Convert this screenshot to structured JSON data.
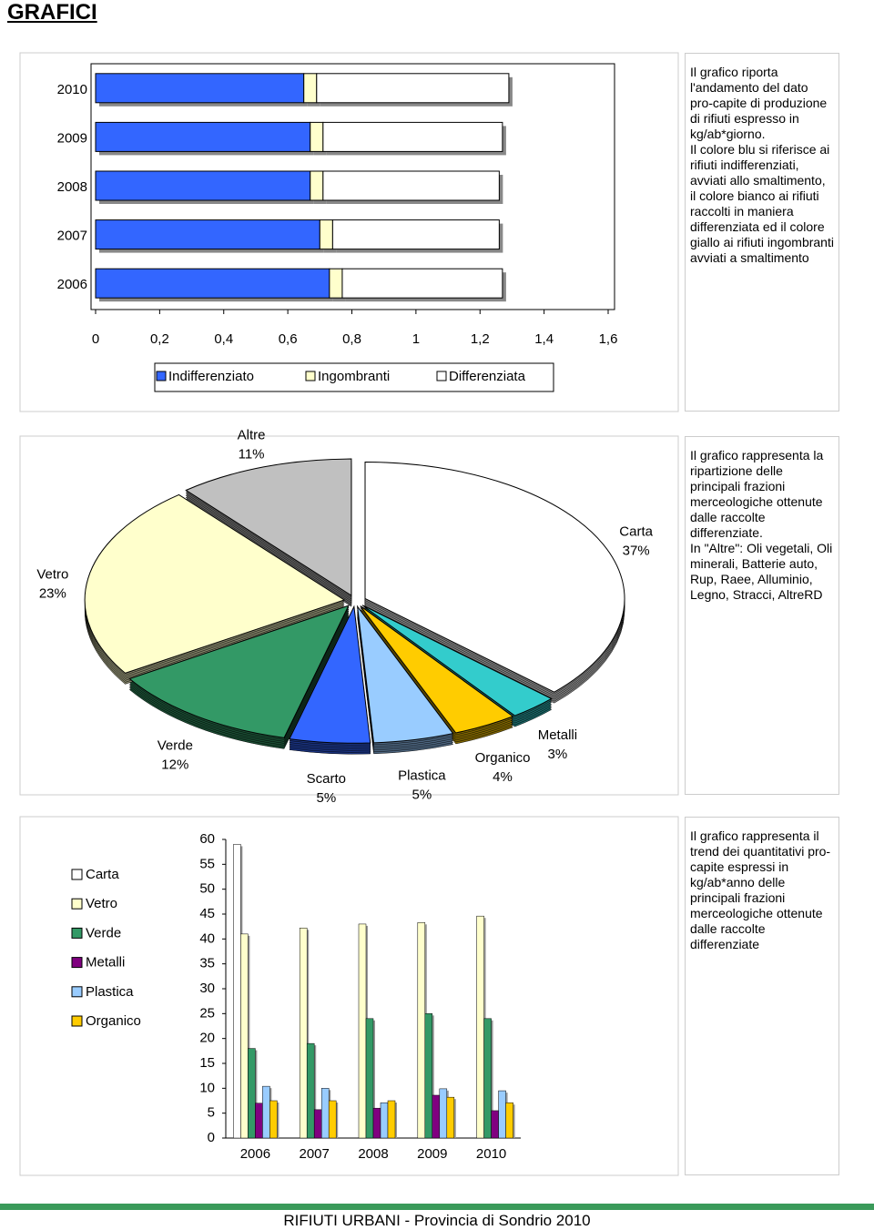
{
  "title": "GRAFICI",
  "chart_data": [
    {
      "type": "hbar",
      "stacked": true,
      "categories": [
        "2010",
        "2009",
        "2008",
        "2007",
        "2006"
      ],
      "series": [
        {
          "name": "Indifferenziato",
          "color": "#3366ff",
          "values": [
            0.65,
            0.67,
            0.67,
            0.7,
            0.73
          ]
        },
        {
          "name": "Ingombranti",
          "color": "#ffffcc",
          "values": [
            0.04,
            0.04,
            0.04,
            0.04,
            0.04
          ]
        },
        {
          "name": "Differenziata",
          "color": "#ffffff",
          "values": [
            0.6,
            0.56,
            0.55,
            0.52,
            0.5
          ]
        }
      ],
      "xlim": [
        0,
        1.6
      ],
      "xticks": [
        0,
        {
          "value": 0.2,
          "label": "0,2"
        },
        {
          "value": 0.4,
          "label": "0,4"
        },
        {
          "value": 0.6,
          "label": "0,6"
        },
        {
          "value": 0.8,
          "label": "0,8"
        },
        1,
        {
          "value": 1.2,
          "label": "1,2"
        },
        {
          "value": 1.4,
          "label": "1,4"
        },
        {
          "value": 1.6,
          "label": "1,6"
        }
      ],
      "legend": "bottom"
    },
    {
      "type": "pie",
      "categories": [
        "Carta",
        "Metalli",
        "Organico",
        "Plastica",
        "Scarto",
        "Verde",
        "Vetro",
        "Altre"
      ],
      "values": [
        37,
        3,
        4,
        5,
        5,
        12,
        23,
        11
      ],
      "value_labels": [
        "37%",
        "3%",
        "4%",
        "5%",
        "5%",
        "12%",
        "23%",
        "11%"
      ],
      "colors": [
        "#ffffff",
        "#33cccc",
        "#ffcc00",
        "#99ccff",
        "#3366ff",
        "#339966",
        "#ffffcc",
        "#c0c0c0"
      ]
    },
    {
      "type": "bar",
      "categories": [
        "2006",
        "2007",
        "2008",
        "2009",
        "2010"
      ],
      "series": [
        {
          "name": "Carta",
          "color": "#ffffff",
          "values": [
            59,
            null,
            null,
            null,
            null
          ]
        },
        {
          "name": "Vetro",
          "color": "#ffffcc",
          "values": [
            41,
            42.2,
            43,
            43.3,
            44.6
          ]
        },
        {
          "name": "Verde",
          "color": "#339966",
          "values": [
            18,
            19,
            24,
            25,
            24
          ]
        },
        {
          "name": "Metalli",
          "color": "#800080",
          "values": [
            7,
            5.7,
            6,
            8.6,
            5.5
          ]
        },
        {
          "name": "Plastica",
          "color": "#99ccff",
          "values": [
            10.4,
            10,
            7.1,
            9.9,
            9.5
          ]
        },
        {
          "name": "Organico",
          "color": "#ffcc00",
          "values": [
            7.5,
            7.5,
            7.5,
            8.2,
            7.1
          ]
        }
      ],
      "ylim": [
        0,
        60
      ],
      "yticks": [
        0,
        5,
        10,
        15,
        20,
        25,
        30,
        35,
        40,
        45,
        50,
        55,
        60
      ],
      "legend": "left"
    }
  ],
  "descriptions": [
    [
      "Il grafico riporta l'andamento del dato pro-capite di produzione di rifiuti espresso in kg/ab*giorno.",
      "Il colore blu si riferisce ai rifiuti indifferenziati, avviati allo smaltimento, il colore bianco ai rifiuti raccolti in maniera differenziata ed il colore giallo ai rifiuti ingombranti avviati a smaltimento"
    ],
    [
      "Il grafico rappresenta la ripartizione delle principali frazioni merceologiche ottenute dalle raccolte differenziate.",
      "In \"Altre\": Oli vegetali, Oli minerali, Batterie auto, Rup, Raee, Alluminio, Legno, Stracci, AltreRD"
    ],
    [
      "Il grafico rappresenta il trend  dei quantitativi pro-capite espressi in kg/ab*anno delle principali frazioni merceologiche ottenute dalle raccolte differenziate"
    ]
  ],
  "footer": "RIFIUTI URBANI - Provincia di Sondrio 2010"
}
